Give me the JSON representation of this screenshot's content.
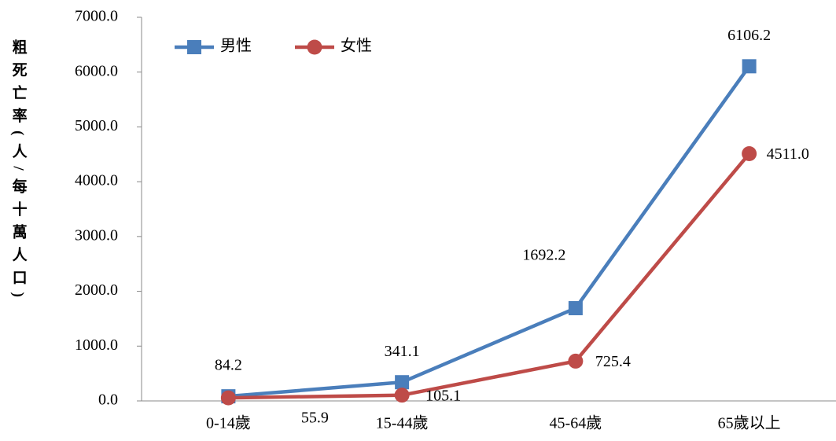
{
  "chart_data": {
    "type": "line",
    "y_label": "粗死亡率(人/每十萬人口)",
    "categories": [
      "0-14歲",
      "15-44歲",
      "45-64歲",
      "65歲以上"
    ],
    "series": [
      {
        "name": "男性",
        "color": "#4a7ebb",
        "marker": "square",
        "values": [
          84.2,
          341.1,
          1692.2,
          6106.2
        ],
        "value_labels": [
          "84.2",
          "341.1",
          "1692.2",
          "6106.2"
        ]
      },
      {
        "name": "女性",
        "color": "#be4b48",
        "marker": "circle",
        "values": [
          55.9,
          105.1,
          725.4,
          4511.0
        ],
        "value_labels": [
          "55.9",
          "105.1",
          "725.4",
          "4511.0"
        ]
      }
    ],
    "ylim": [
      0,
      7000
    ],
    "yticks": [
      {
        "value": 0,
        "label": "0.0"
      },
      {
        "value": 1000,
        "label": "1000.0"
      },
      {
        "value": 2000,
        "label": "2000.0"
      },
      {
        "value": 3000,
        "label": "3000.0"
      },
      {
        "value": 4000,
        "label": "4000.0"
      },
      {
        "value": 5000,
        "label": "5000.0"
      },
      {
        "value": 6000,
        "label": "6000.0"
      },
      {
        "value": 7000,
        "label": "7000.0"
      }
    ],
    "legend": "top-left"
  }
}
